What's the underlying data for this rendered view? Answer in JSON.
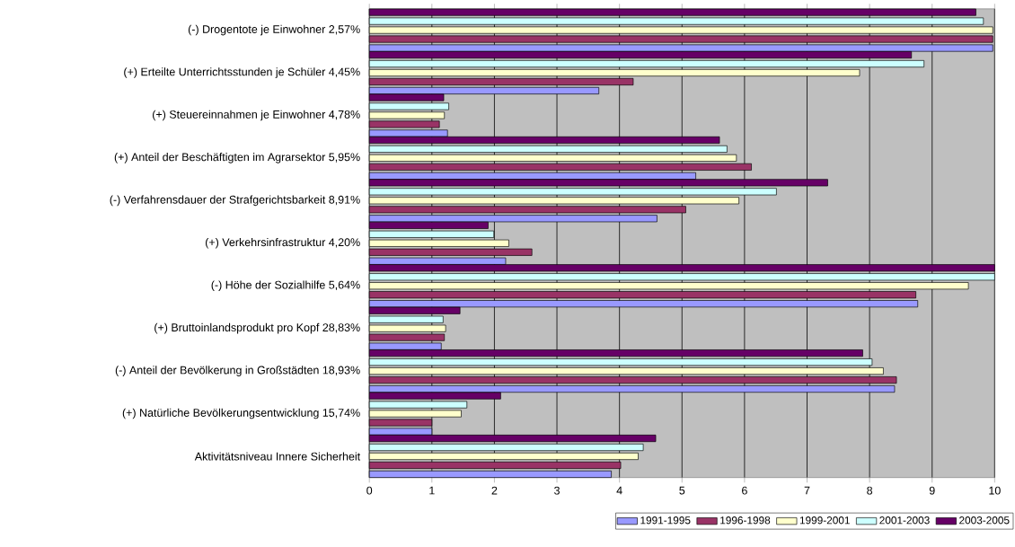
{
  "chart_data": {
    "type": "bar",
    "orientation": "horizontal",
    "categories": [
      "(-) Drogentote je Einwohner 2,57%",
      "(+) Erteilte Unterrichtsstunden je Schüler 4,45%",
      "(+) Steuereinnahmen je Einwohner 4,78%",
      "(+) Anteil der Beschäftigten im Agrarsektor 5,95%",
      "(-) Verfahrensdauer der Strafgerichtsbarkeit 8,91%",
      "(+) Verkehrsinfrastruktur 4,20%",
      "(-) Höhe der Sozialhilfe 5,64%",
      "(+) Bruttoinlandsprodukt pro Kopf 28,83%",
      "(-) Anteil der Bevölkerung in Großstädten 18,93%",
      "(+) Natürliche Bevölkerungsentwicklung 15,74%",
      "Aktivitätsniveau Innere Sicherheit"
    ],
    "series": [
      {
        "name": "1991-1995",
        "color": "#9999ff",
        "values": [
          9.97,
          3.67,
          1.25,
          5.22,
          4.6,
          2.18,
          8.77,
          1.15,
          8.4,
          1.0,
          3.87
        ]
      },
      {
        "name": "1996-1998",
        "color": "#993366",
        "values": [
          9.97,
          4.22,
          1.12,
          6.11,
          5.06,
          2.6,
          8.74,
          1.2,
          8.43,
          1.0,
          4.02
        ]
      },
      {
        "name": "1999-2001",
        "color": "#ffffcc",
        "values": [
          9.97,
          7.84,
          1.2,
          5.87,
          5.91,
          2.23,
          9.58,
          1.22,
          8.22,
          1.47,
          4.3
        ]
      },
      {
        "name": "2001-2003",
        "color": "#ccffff",
        "values": [
          9.82,
          8.87,
          1.27,
          5.72,
          6.51,
          1.99,
          10.0,
          1.18,
          8.04,
          1.56,
          4.38
        ]
      },
      {
        "name": "2003-2005",
        "color": "#660066",
        "values": [
          9.7,
          8.67,
          1.19,
          5.6,
          7.33,
          1.9,
          10.0,
          1.45,
          7.89,
          2.1,
          4.58
        ]
      }
    ],
    "xlim": [
      0,
      10
    ],
    "xticks": [
      0,
      1,
      2,
      3,
      4,
      5,
      6,
      7,
      8,
      9,
      10
    ],
    "grid": "x",
    "legend": "bottom right"
  }
}
